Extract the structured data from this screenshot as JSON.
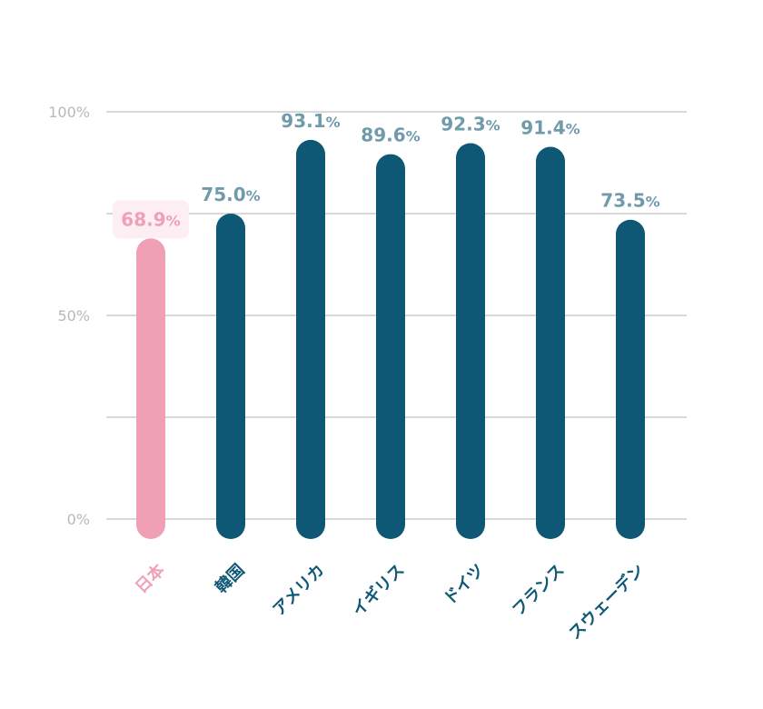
{
  "chart_data": {
    "type": "bar",
    "categories": [
      "日本",
      "韓国",
      "アメリカ",
      "イギリス",
      "ドイツ",
      "フランス",
      "スウェーデン"
    ],
    "values": [
      68.9,
      75.0,
      93.1,
      89.6,
      92.3,
      91.4,
      73.5
    ],
    "value_labels": [
      "68.9",
      "75.0",
      "93.1",
      "89.6",
      "92.3",
      "91.4",
      "73.5"
    ],
    "value_unit": "%",
    "y_ticks": [
      {
        "value": 0,
        "label": "0%"
      },
      {
        "value": 50,
        "label": "50%"
      },
      {
        "value": 100,
        "label": "100%"
      }
    ],
    "gridlines": [
      0,
      25,
      50,
      75,
      100
    ],
    "ylim": [
      0,
      100
    ],
    "highlight_category": "日本",
    "grid": true,
    "legend": "none",
    "colors": {
      "bar": "#0f5875",
      "highlight_bar": "#f0a0b5",
      "highlight_label_bg": "#fdeef3",
      "value_label": "#6f9bab",
      "highlight_value_label": "#f0a0b5",
      "category_label": "#0f5875",
      "highlight_category_label": "#f0a0b5",
      "gridline": "#cccccc",
      "tick_label": "#b8b8b8"
    },
    "title": "",
    "xlabel": "",
    "ylabel": ""
  }
}
